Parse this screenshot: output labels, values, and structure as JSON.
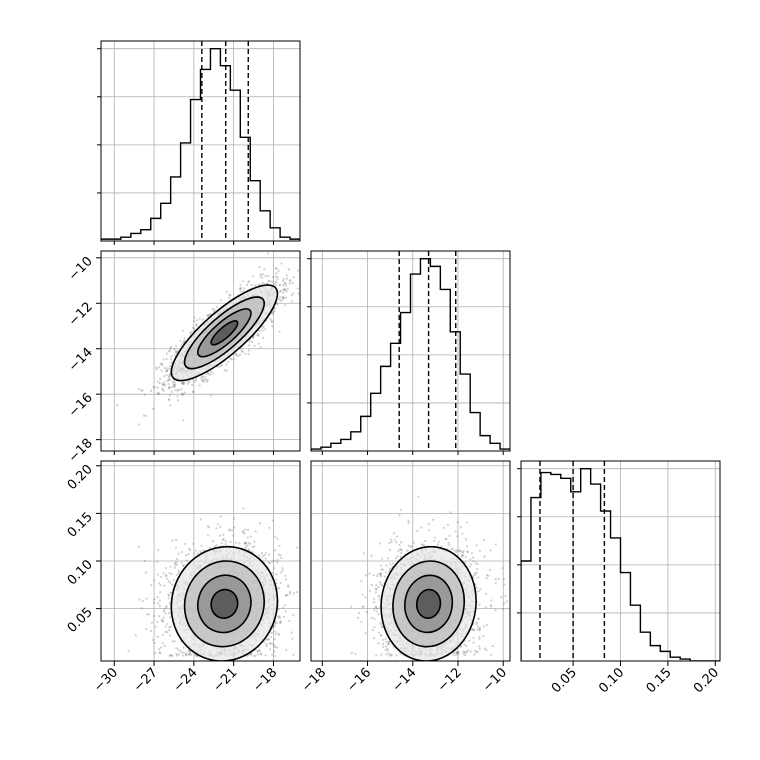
{
  "chart_data": {
    "type": "corner",
    "parameters": [
      {
        "range": [
          -31,
          -16
        ],
        "ticks": [
          -30,
          -27,
          -24,
          -21,
          -18
        ]
      },
      {
        "range": [
          -18.5,
          -9.7
        ],
        "ticks": [
          -18,
          -16,
          -14,
          -12,
          -10
        ]
      },
      {
        "range": [
          -0.005,
          0.205
        ],
        "ticks": [
          0.05,
          0.1,
          0.15,
          0.2
        ]
      }
    ],
    "tick_labels": {
      "p0": [
        "−30",
        "−27",
        "−24",
        "−21",
        "−18"
      ],
      "p1": [
        "−18",
        "−16",
        "−14",
        "−12",
        "−10"
      ],
      "p2": [
        "0.05",
        "0.10",
        "0.15",
        "0.20"
      ]
    },
    "histograms": [
      {
        "param": 0,
        "bin_edges": [
          -31.0,
          -30.25,
          -29.5,
          -28.75,
          -28.0,
          -27.25,
          -26.5,
          -25.75,
          -25.0,
          -24.25,
          -23.5,
          -22.75,
          -22.0,
          -21.25,
          -20.5,
          -19.75,
          -19.0,
          -18.25,
          -17.5,
          -16.75,
          -16.0
        ],
        "counts": [
          1,
          1,
          2,
          4,
          6,
          12,
          20,
          34,
          52,
          75,
          91,
          102,
          93,
          80,
          55,
          32,
          16,
          7,
          2,
          1
        ],
        "quantiles": [
          -23.4,
          -21.6,
          -19.9
        ]
      },
      {
        "param": 1,
        "bin_edges": [
          -18.5,
          -18.06,
          -17.62,
          -17.18,
          -16.74,
          -16.3,
          -15.86,
          -15.42,
          -14.98,
          -14.54,
          -14.1,
          -13.66,
          -13.22,
          -12.78,
          -12.34,
          -11.9,
          -11.46,
          -11.02,
          -10.58,
          -10.14,
          -9.7
        ],
        "counts": [
          1,
          2,
          4,
          6,
          10,
          18,
          30,
          44,
          56,
          72,
          92,
          100,
          96,
          84,
          62,
          40,
          20,
          8,
          4,
          1
        ],
        "quantiles": [
          -14.6,
          -13.3,
          -12.1
        ]
      },
      {
        "param": 2,
        "bin_edges": [
          -0.005,
          0.0055,
          0.016,
          0.0265,
          0.037,
          0.0475,
          0.058,
          0.0685,
          0.079,
          0.0895,
          0.1,
          0.1105,
          0.121,
          0.1315,
          0.142,
          0.1525,
          0.163,
          0.1735,
          0.184,
          0.1945,
          0.205
        ],
        "counts": [
          52,
          85,
          98,
          97,
          95,
          88,
          100,
          92,
          78,
          64,
          46,
          29,
          15,
          8,
          5,
          2,
          1,
          0,
          0,
          0
        ],
        "quantiles": [
          0.015,
          0.05,
          0.083
        ]
      }
    ],
    "scatter_2d": [
      {
        "x_param": 0,
        "y_param": 1,
        "mean": [
          -21.7,
          -13.3
        ],
        "std": [
          2.0,
          1.05
        ],
        "correlation": 0.82
      },
      {
        "x_param": 0,
        "y_param": 2,
        "mean": [
          -21.7,
          0.055
        ],
        "std": [
          2.0,
          0.03
        ],
        "correlation": 0.05
      },
      {
        "x_param": 1,
        "y_param": 2,
        "mean": [
          -13.3,
          0.055
        ],
        "std": [
          1.05,
          0.03
        ],
        "correlation": 0.05
      }
    ],
    "grid": true,
    "contour_levels_sigma": [
      0.5,
      1.0,
      1.5,
      2.0
    ]
  }
}
